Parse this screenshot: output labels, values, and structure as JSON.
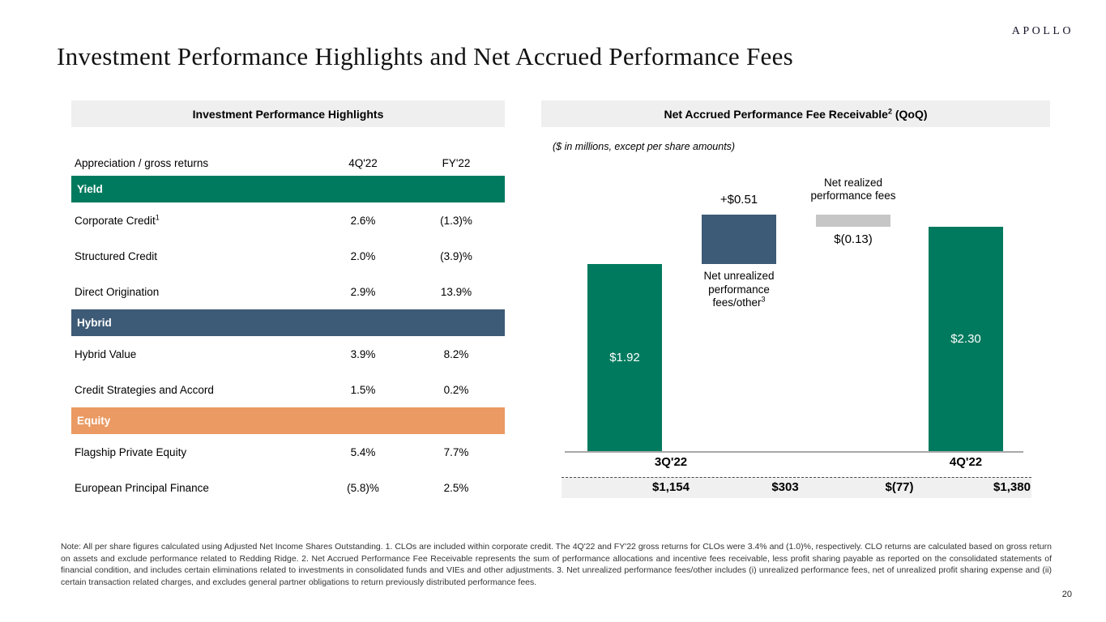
{
  "brand": {
    "logo": "APOLLO",
    "page_number": "20"
  },
  "title": "Investment Performance Highlights and Net Accrued Performance Fees",
  "colors": {
    "yield_green": "#007a5e",
    "hybrid_blue": "#3d5a76",
    "equity_orange": "#ea9a62",
    "bridge_gray": "#c6c6c6",
    "panel_header_gray": "#efefef"
  },
  "left_panel": {
    "header": "Investment Performance Highlights",
    "columns": {
      "label": "Appreciation / gross returns",
      "q": "4Q'22",
      "fy": "FY'22"
    },
    "sections": [
      {
        "name": "Yield",
        "rows": [
          {
            "label": "Corporate Credit",
            "sup": "1",
            "q": "2.6%",
            "fy": "(1.3)%"
          },
          {
            "label": "Structured Credit",
            "q": "2.0%",
            "fy": "(3.9)%"
          },
          {
            "label": "Direct Origination",
            "q": "2.9%",
            "fy": "13.9%"
          }
        ]
      },
      {
        "name": "Hybrid",
        "rows": [
          {
            "label": "Hybrid Value",
            "q": "3.9%",
            "fy": "8.2%"
          },
          {
            "label": "Credit Strategies and Accord",
            "q": "1.5%",
            "fy": "0.2%"
          }
        ]
      },
      {
        "name": "Equity",
        "rows": [
          {
            "label": "Flagship Private Equity",
            "q": "5.4%",
            "fy": "7.7%"
          },
          {
            "label": "European Principal Finance",
            "q": "(5.8)%",
            "fy": "2.5%"
          }
        ]
      }
    ]
  },
  "right_panel": {
    "header_main": "Net Accrued Performance Fee Receivable",
    "header_sup": "2",
    "header_suffix": " (QoQ)",
    "subtitle": "($ in millions, except per share amounts)"
  },
  "chart_data": {
    "type": "waterfall",
    "title": "Net Accrued Performance Fee Receivable (QoQ)",
    "unit_note": "($ in millions, except per share amounts)",
    "ylim_per_share": [
      0,
      2.43
    ],
    "bars": [
      {
        "category": "3Q'22",
        "role": "total",
        "start": 0,
        "end": 1.92,
        "per_share_label": "$1.92",
        "total_millions": "$1,154",
        "color": "#007a5e"
      },
      {
        "category": "Net unrealized performance fees/other",
        "footnote_sup": "3",
        "role": "increase",
        "start": 1.92,
        "end": 2.43,
        "per_share_label": "+$0.51",
        "total_millions": "$303",
        "color": "#3d5a76"
      },
      {
        "category": "Net realized performance fees",
        "role": "decrease",
        "start": 2.43,
        "end": 2.3,
        "per_share_label": "$(0.13)",
        "total_millions": "$(77)",
        "color": "#c6c6c6"
      },
      {
        "category": "4Q'22",
        "role": "total",
        "start": 0,
        "end": 2.3,
        "per_share_label": "$2.30",
        "total_millions": "$1,380",
        "color": "#007a5e"
      }
    ]
  },
  "footnote": "Note: All per share figures calculated using Adjusted Net Income Shares Outstanding. 1. CLOs are included within corporate credit. The 4Q'22 and FY'22 gross returns for CLOs were 3.4% and (1.0)%, respectively. CLO returns are calculated based on gross return on assets and exclude performance related to Redding Ridge. 2. Net Accrued Performance Fee Receivable represents the sum of performance allocations and incentive fees receivable, less profit sharing payable as reported on the consolidated statements of financial condition, and includes certain eliminations related to investments in consolidated funds and VIEs and other adjustments. 3. Net unrealized performance fees/other includes (i) unrealized performance fees, net of unrealized profit sharing expense and (ii) certain transaction related charges, and excludes general partner obligations to return previously distributed performance fees."
}
